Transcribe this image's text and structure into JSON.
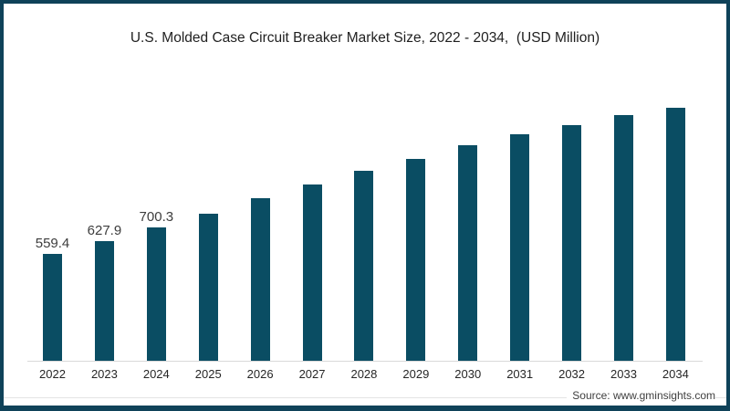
{
  "chart_data": {
    "type": "bar",
    "title": "U.S. Molded Case Circuit Breaker Market Size, 2022 - 2034,  (USD Million)",
    "categories": [
      "2022",
      "2023",
      "2024",
      "2025",
      "2026",
      "2027",
      "2028",
      "2029",
      "2030",
      "2031",
      "2032",
      "2033",
      "2034"
    ],
    "values": [
      559.4,
      627.9,
      700.3,
      774,
      855,
      927,
      999,
      1062,
      1130,
      1188,
      1238,
      1289,
      1329
    ],
    "data_labels": [
      "559.4",
      "627.9",
      "700.3",
      "",
      "",
      "",
      "",
      "",
      "",
      "",
      "",
      "",
      ""
    ],
    "xlabel": "",
    "ylabel": "",
    "ylim": [
      0,
      1420
    ],
    "grid": false,
    "legend": false,
    "source": "Source: www.gminsights.com",
    "colors": {
      "frame_border": "#0f4259",
      "bar": "#0a4d63",
      "axis_line": "#d9d9d9",
      "footer_line": "#e4e4e4",
      "title_text": "#1f1f1f",
      "value_label": "#3d3d3d",
      "tick_label": "#262626",
      "source_text": "#404040",
      "background": "#ffffff"
    }
  }
}
